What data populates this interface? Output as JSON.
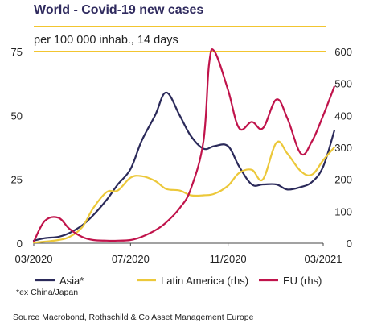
{
  "header": {
    "title": "World - Covid-19 new cases",
    "subtitle": "per 100 000 inhab., 14 days"
  },
  "footnote": "*ex China/Japan",
  "source": "Source Macrobond, Rothschild & Co Asset Management Europe",
  "colors": {
    "title": "#2f2a5e",
    "rule": "#f2c530",
    "asia": "#2b2a5a",
    "latam": "#ecc83a",
    "eu": "#c0134b"
  },
  "chart_data": {
    "type": "line",
    "x_tick_labels": [
      "03/2020",
      "07/2020",
      "11/2020",
      "03/2021"
    ],
    "y_left": {
      "ticks": [
        0,
        25,
        50,
        75
      ],
      "ylim": [
        0,
        75
      ]
    },
    "y_right": {
      "ticks": [
        0,
        100,
        200,
        300,
        400,
        500,
        600
      ],
      "ylim": [
        0,
        600
      ]
    },
    "legend_position": "bottom",
    "series": [
      {
        "name": "Asia*",
        "axis": "left",
        "color": "#2b2a5a",
        "x": [
          "2020-03-01",
          "2020-03-15",
          "2020-04-01",
          "2020-04-15",
          "2020-05-01",
          "2020-05-15",
          "2020-06-01",
          "2020-06-15",
          "2020-07-01",
          "2020-07-15",
          "2020-08-01",
          "2020-08-15",
          "2020-09-01",
          "2020-09-15",
          "2020-10-01",
          "2020-10-15",
          "2020-11-01",
          "2020-11-15",
          "2020-12-01",
          "2020-12-15",
          "2021-01-01",
          "2021-01-15",
          "2021-02-01",
          "2021-02-15",
          "2021-03-01",
          "2021-03-15"
        ],
        "y": [
          1,
          2,
          2.5,
          4,
          7,
          11,
          17,
          23,
          29,
          40,
          50,
          59,
          50,
          42,
          37,
          38,
          38,
          30,
          23,
          23,
          23,
          21,
          22,
          24,
          30,
          44
        ]
      },
      {
        "name": "Latin America (rhs)",
        "axis": "right",
        "color": "#ecc83a",
        "x": [
          "2020-03-01",
          "2020-03-15",
          "2020-04-01",
          "2020-04-15",
          "2020-05-01",
          "2020-05-15",
          "2020-06-01",
          "2020-06-15",
          "2020-07-01",
          "2020-07-15",
          "2020-08-01",
          "2020-08-15",
          "2020-09-01",
          "2020-09-15",
          "2020-10-01",
          "2020-10-15",
          "2020-11-01",
          "2020-11-15",
          "2020-12-01",
          "2020-12-15",
          "2021-01-01",
          "2021-01-15",
          "2021-02-01",
          "2021-02-15",
          "2021-03-01",
          "2021-03-15"
        ],
        "y": [
          2,
          5,
          10,
          20,
          50,
          110,
          160,
          165,
          205,
          210,
          195,
          170,
          165,
          150,
          150,
          155,
          180,
          220,
          230,
          200,
          315,
          280,
          225,
          215,
          260,
          300
        ]
      },
      {
        "name": "EU (rhs)",
        "axis": "right",
        "color": "#c0134b",
        "x": [
          "2020-03-01",
          "2020-03-15",
          "2020-04-01",
          "2020-04-15",
          "2020-05-01",
          "2020-05-15",
          "2020-06-01",
          "2020-06-15",
          "2020-07-01",
          "2020-07-15",
          "2020-08-01",
          "2020-08-15",
          "2020-09-01",
          "2020-09-15",
          "2020-10-01",
          "2020-10-08",
          "2020-10-15",
          "2020-11-01",
          "2020-11-15",
          "2020-12-01",
          "2020-12-15",
          "2021-01-01",
          "2021-01-15",
          "2021-02-01",
          "2021-02-15",
          "2021-03-01",
          "2021-03-15"
        ],
        "y": [
          5,
          70,
          80,
          45,
          20,
          10,
          8,
          8,
          10,
          20,
          40,
          65,
          110,
          170,
          320,
          560,
          600,
          480,
          360,
          380,
          360,
          450,
          390,
          280,
          320,
          400,
          490
        ]
      }
    ]
  }
}
